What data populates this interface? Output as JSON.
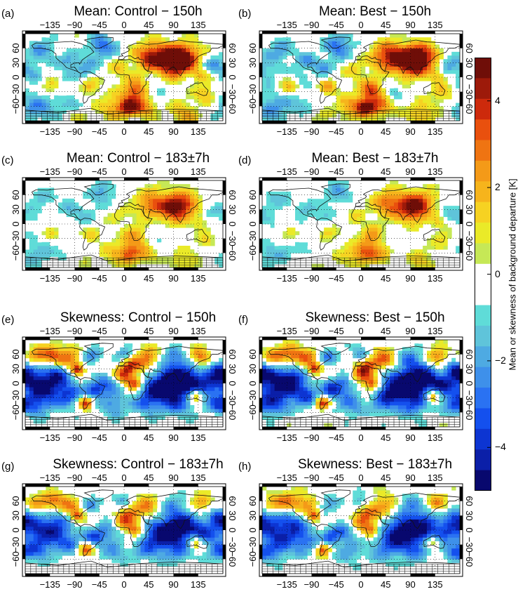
{
  "panels": [
    {
      "letter": "(a)",
      "title": "Mean: Control − 150h",
      "stat": "mean",
      "run": "control",
      "time": "150h"
    },
    {
      "letter": "(b)",
      "title": "Mean: Best − 150h",
      "stat": "mean",
      "run": "best",
      "time": "150h"
    },
    {
      "letter": "(c)",
      "title": "Mean: Control − 183±7h",
      "stat": "mean",
      "run": "control",
      "time": "183±7h"
    },
    {
      "letter": "(d)",
      "title": "Mean: Best − 183±7h",
      "stat": "mean",
      "run": "best",
      "time": "183±7h"
    },
    {
      "letter": "(e)",
      "title": "Skewness: Control − 150h",
      "stat": "skewness",
      "run": "control",
      "time": "150h"
    },
    {
      "letter": "(f)",
      "title": "Skewness: Best − 150h",
      "stat": "skewness",
      "run": "best",
      "time": "150h"
    },
    {
      "letter": "(g)",
      "title": "Skewness: Control − 183±7h",
      "stat": "skewness",
      "run": "control",
      "time": "183±7h"
    },
    {
      "letter": "(h)",
      "title": "Skewness: Best − 183±7h",
      "stat": "skewness",
      "run": "best",
      "time": "183±7h"
    }
  ],
  "axes": {
    "lon_ticks": [
      "−135",
      "−90",
      "−45",
      "0",
      "45",
      "90",
      "135"
    ],
    "lat_ticks_left": [
      "60",
      "30",
      "0",
      "−30",
      "−60"
    ],
    "lat_ticks_right": [
      "60",
      "30",
      "0",
      "−30",
      "−60"
    ]
  },
  "colorbar": {
    "label": "Mean or skewness of background departure [K]",
    "range": [
      -5,
      5
    ],
    "ticks": [
      {
        "value": 4,
        "label": "4"
      },
      {
        "value": 2,
        "label": "2"
      },
      {
        "value": 0,
        "label": "0"
      },
      {
        "value": -2,
        "label": "−2"
      },
      {
        "value": -4,
        "label": "−4"
      }
    ],
    "colors": [
      "#08086e",
      "#0b1fa8",
      "#0d35d2",
      "#1450ee",
      "#2a72f2",
      "#3e90ea",
      "#4eaae2",
      "#5fc4da",
      "#5fdcd8",
      "#ffffff",
      "#ffffff",
      "#c6e856",
      "#eaea28",
      "#f6d222",
      "#f6b41c",
      "#f49a18",
      "#ef7412",
      "#e9500e",
      "#cd2a0c",
      "#9d1a0a",
      "#6f0e08"
    ]
  }
}
